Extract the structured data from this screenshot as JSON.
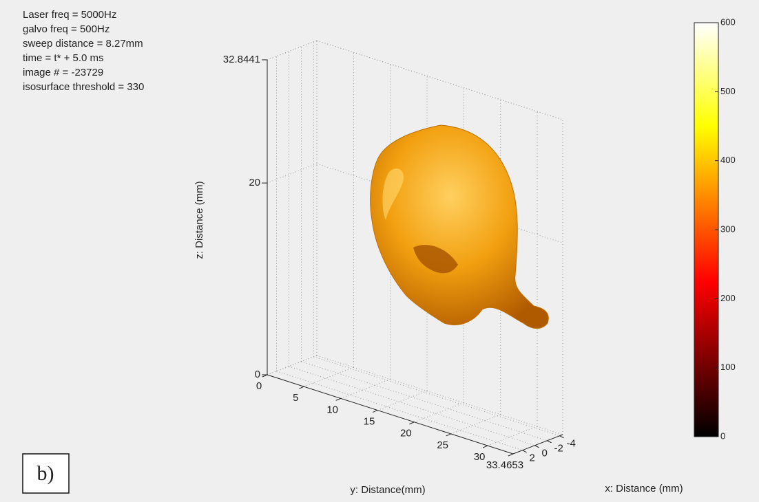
{
  "chart_data": {
    "type": "isosurface3d",
    "annotations": [
      "Laser freq = 5000Hz",
      "galvo freq = 500Hz",
      "sweep distance = 8.27mm",
      "time = t* +  5.0 ms",
      "image # =   -23729",
      "isosurface threshold = 330"
    ],
    "panel_label": "b)",
    "xlabel": "x: Distance (mm)",
    "ylabel": "y: Distance(mm)",
    "zlabel": "z: Distance (mm)",
    "xlim": [
      -4.5,
      3.5
    ],
    "xticks": [
      2,
      0,
      -2,
      -4
    ],
    "ylim": [
      0,
      33.4653
    ],
    "yticks": [
      0,
      5,
      10,
      15,
      20,
      25,
      30,
      33.4653
    ],
    "zlim": [
      0,
      32.8441
    ],
    "zticks": [
      0,
      20,
      32.8441
    ],
    "grid": true,
    "surface_color": "#f2a010",
    "colorbar": {
      "clim": [
        0,
        600
      ],
      "ticks": [
        0,
        100,
        200,
        300,
        400,
        500,
        600
      ],
      "colormap": "hot"
    }
  }
}
